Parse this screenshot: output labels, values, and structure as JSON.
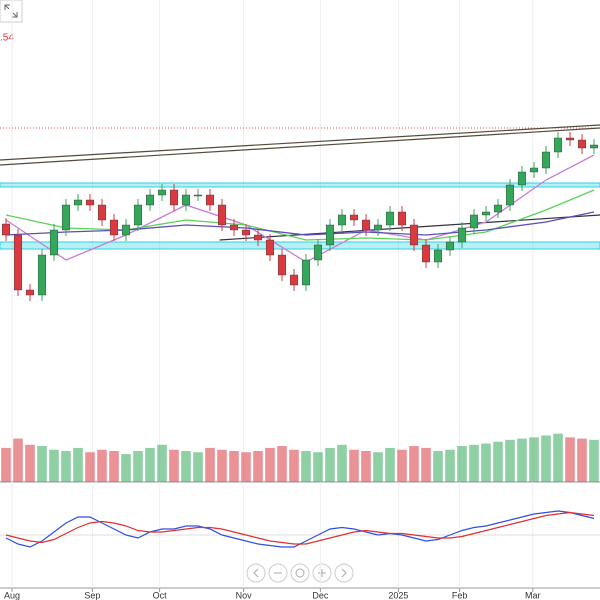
{
  "chart_data": {
    "type": "candlestick",
    "label": ".54",
    "xticks": [
      {
        "value": 0.5,
        "label": "Aug"
      },
      {
        "value": 7.2,
        "label": "Sep"
      },
      {
        "value": 12.8,
        "label": "Oct"
      },
      {
        "value": 19.8,
        "label": "Nov"
      },
      {
        "value": 26.2,
        "label": "Dec"
      },
      {
        "value": 32.7,
        "label": "2025"
      },
      {
        "value": 37.8,
        "label": "Feb"
      },
      {
        "value": 43.9,
        "label": "Mar"
      }
    ],
    "xlim": [
      -0.5,
      49.5
    ],
    "ylim": [
      0,
      100
    ],
    "grid": true,
    "up_color": "#33a85a",
    "down_color": "#d9393f",
    "open": [
      44,
      41.25,
      27.5,
      26.25,
      36.25,
      42.5,
      48.75,
      50,
      48.75,
      45,
      41.25,
      43.75,
      48.75,
      51.25,
      52.5,
      48.75,
      51.25,
      51.25,
      48.75,
      43.75,
      42.5,
      41.25,
      40,
      36.25,
      31.25,
      28.75,
      35,
      38.75,
      43.75,
      46.25,
      45,
      42.5,
      43.75,
      47,
      43.75,
      38.75,
      34.5,
      37.5,
      39.5,
      43,
      46.25,
      47,
      48.75,
      53.75,
      57,
      58,
      62,
      65.5,
      65,
      63
    ],
    "high": [
      45.5,
      42.75,
      29,
      37.75,
      44,
      50.25,
      51.5,
      51.5,
      50.25,
      46.5,
      45.25,
      50.25,
      52.75,
      54,
      54,
      52.75,
      52.75,
      52.75,
      50.25,
      45.25,
      44,
      42.75,
      41.5,
      37.75,
      32.75,
      36.5,
      40.25,
      45.25,
      47.75,
      47.75,
      46.5,
      45.25,
      48.5,
      48.5,
      45.25,
      40.25,
      39,
      41,
      44.5,
      47.75,
      48.5,
      50.25,
      55.25,
      58.5,
      59.5,
      63.5,
      67,
      67,
      66.5,
      65.25
    ],
    "low": [
      39.75,
      26,
      24.75,
      24.75,
      34.75,
      41,
      47.25,
      47.25,
      43.5,
      39.75,
      39.75,
      42.25,
      47.25,
      49.75,
      47.25,
      47.25,
      49.75,
      47.25,
      42.25,
      41,
      39.75,
      38.5,
      34.75,
      29.75,
      27.25,
      27.25,
      33.5,
      37.25,
      42.25,
      43.5,
      41,
      41,
      42.25,
      42.25,
      37.25,
      33,
      33,
      36,
      38,
      41.5,
      44.75,
      45.5,
      47.25,
      52.25,
      55.5,
      56.5,
      60.5,
      63.5,
      61.5,
      61.5
    ],
    "close": [
      41.25,
      27.5,
      26.25,
      36.25,
      42.5,
      48.75,
      50,
      48.75,
      45,
      41.25,
      43.75,
      48.75,
      51.25,
      52.5,
      48.75,
      51.25,
      51.25,
      48.75,
      43.75,
      42.5,
      41.25,
      40,
      36.25,
      31.25,
      28.75,
      35,
      38.75,
      43.75,
      46.25,
      45,
      42.5,
      43.75,
      47,
      43.75,
      38.75,
      34.5,
      37.5,
      39.5,
      43,
      46.25,
      47,
      48.75,
      53.75,
      57,
      58,
      62,
      65.5,
      65,
      63,
      63.75
    ],
    "averages": [
      {
        "color": "#c77dd8",
        "x": [
          0,
          5,
          10,
          15,
          20,
          25,
          30,
          35,
          40,
          45,
          49
        ],
        "values": [
          45,
          35,
          41.25,
          48.75,
          43.75,
          34.5,
          42.5,
          40,
          44.5,
          55,
          61.25
        ]
      },
      {
        "color": "#5ad25a",
        "x": [
          0,
          5,
          10,
          15,
          20,
          25,
          30,
          35,
          40,
          45,
          49
        ],
        "values": [
          46.25,
          43,
          42.5,
          45,
          43.75,
          40,
          40.5,
          40,
          42,
          47.5,
          52.5
        ]
      },
      {
        "color": "#5a50b4",
        "x": [
          0,
          5,
          10,
          15,
          20,
          25,
          30,
          35,
          40,
          45,
          49
        ],
        "values": [
          41.25,
          42,
          42.5,
          43.75,
          43,
          41.25,
          42,
          41.25,
          42.5,
          44.5,
          47
        ]
      }
    ],
    "zones": [
      {
        "from": 53.25,
        "to": 54.25,
        "color": "#30d0e0"
      },
      {
        "from": 37.75,
        "to": 39.5,
        "color": "#30d0e0"
      }
    ],
    "level": {
      "value": 68,
      "color": "#e05050"
    },
    "trendlines": [
      {
        "x": [
          -0.5,
          49.5
        ],
        "y": [
          58.75,
          68
        ],
        "color": "#554b3c"
      },
      {
        "x": [
          -0.5,
          49.5
        ],
        "y": [
          60,
          68.75
        ],
        "color": "#554b3c"
      },
      {
        "x": [
          17.8,
          49.5
        ],
        "y": [
          40,
          46.25
        ],
        "color": "#333340"
      }
    ],
    "volume": {
      "ylim": [
        0,
        100
      ],
      "values": [
        55,
        70,
        60,
        58,
        52,
        50,
        55,
        48,
        52,
        50,
        45,
        50,
        55,
        60,
        52,
        50,
        48,
        55,
        52,
        50,
        48,
        50,
        55,
        58,
        52,
        50,
        48,
        55,
        60,
        52,
        50,
        48,
        55,
        52,
        58,
        55,
        50,
        52,
        58,
        60,
        62,
        65,
        68,
        70,
        72,
        75,
        78,
        72,
        70,
        68
      ]
    },
    "macd": {
      "ylim": [
        -10,
        10
      ],
      "series": [
        {
          "color": "#3050e0",
          "values": [
            -1,
            -3,
            -4,
            -2,
            1,
            4,
            6,
            6,
            4,
            2,
            0,
            -1,
            1,
            2,
            2,
            3,
            3,
            2,
            0,
            -1,
            -2,
            -3,
            -3.5,
            -4,
            -4,
            -2,
            0,
            2,
            2.5,
            2,
            1,
            0,
            0.5,
            0,
            -1,
            -2,
            -1.5,
            0,
            1.5,
            2.5,
            3,
            4,
            5,
            6,
            7,
            7.5,
            8,
            7.5,
            6.5,
            5.5
          ]
        },
        {
          "color": "#e03030",
          "values": [
            0,
            -1,
            -2,
            -2.5,
            -1.5,
            0.5,
            2.5,
            4,
            4.5,
            4,
            3,
            1.5,
            1,
            1,
            1.5,
            2,
            2.5,
            2.5,
            2,
            1,
            0,
            -1,
            -2,
            -2.5,
            -3,
            -3,
            -2,
            -1,
            0,
            1,
            1.5,
            1,
            0.5,
            0.5,
            0,
            -0.5,
            -1,
            -1,
            -0.5,
            0.5,
            1.5,
            2.5,
            3.5,
            4.5,
            5.5,
            6.5,
            7,
            7.5,
            7,
            6.5
          ]
        }
      ]
    }
  }
}
